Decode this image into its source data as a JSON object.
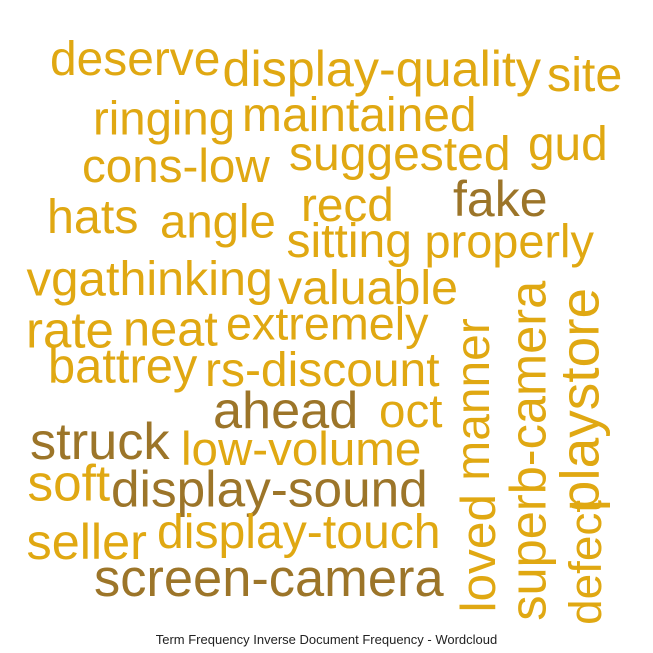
{
  "palette": {
    "gold": "#e0a812",
    "dark": "#9c7529",
    "mid": "#c8971e"
  },
  "caption": "Term Frequency Inverse Document Frequency - Wordcloud",
  "words": [
    {
      "text": "deserve",
      "color": "gold",
      "rotate": false
    },
    {
      "text": "display-quality",
      "color": "gold",
      "rotate": false
    },
    {
      "text": "site",
      "color": "gold",
      "rotate": false
    },
    {
      "text": "ringing",
      "color": "gold",
      "rotate": false
    },
    {
      "text": "maintained",
      "color": "gold",
      "rotate": false
    },
    {
      "text": "gud",
      "color": "gold",
      "rotate": false
    },
    {
      "text": "cons-low",
      "color": "gold",
      "rotate": false
    },
    {
      "text": "suggested",
      "color": "gold",
      "rotate": false
    },
    {
      "text": "fake",
      "color": "dark",
      "rotate": false
    },
    {
      "text": "hats",
      "color": "gold",
      "rotate": false
    },
    {
      "text": "angle",
      "color": "gold",
      "rotate": false
    },
    {
      "text": "recd",
      "color": "gold",
      "rotate": false
    },
    {
      "text": "sitting",
      "color": "gold",
      "rotate": false
    },
    {
      "text": "properly",
      "color": "gold",
      "rotate": false
    },
    {
      "text": "vga",
      "color": "gold",
      "rotate": false
    },
    {
      "text": "thinking",
      "color": "gold",
      "rotate": false
    },
    {
      "text": "valuable",
      "color": "gold",
      "rotate": false
    },
    {
      "text": "rate",
      "color": "gold",
      "rotate": false
    },
    {
      "text": "neat",
      "color": "gold",
      "rotate": false
    },
    {
      "text": "extremely",
      "color": "gold",
      "rotate": false
    },
    {
      "text": "battrey",
      "color": "gold",
      "rotate": false
    },
    {
      "text": "rs-discount",
      "color": "gold",
      "rotate": false
    },
    {
      "text": "ahead",
      "color": "dark",
      "rotate": false
    },
    {
      "text": "oct",
      "color": "gold",
      "rotate": false
    },
    {
      "text": "struck",
      "color": "dark",
      "rotate": false
    },
    {
      "text": "low-volume",
      "color": "gold",
      "rotate": false
    },
    {
      "text": "soft",
      "color": "gold",
      "rotate": false
    },
    {
      "text": "display-sound",
      "color": "dark",
      "rotate": false
    },
    {
      "text": "seller",
      "color": "gold",
      "rotate": false
    },
    {
      "text": "display-touch",
      "color": "gold",
      "rotate": false
    },
    {
      "text": "screen-camera",
      "color": "dark",
      "rotate": false
    },
    {
      "text": "manner",
      "color": "gold",
      "rotate": true
    },
    {
      "text": "loved",
      "color": "gold",
      "rotate": true
    },
    {
      "text": "superb-camera",
      "color": "gold",
      "rotate": true
    },
    {
      "text": "playstore",
      "color": "gold",
      "rotate": true
    },
    {
      "text": "defect",
      "color": "gold",
      "rotate": true
    }
  ]
}
